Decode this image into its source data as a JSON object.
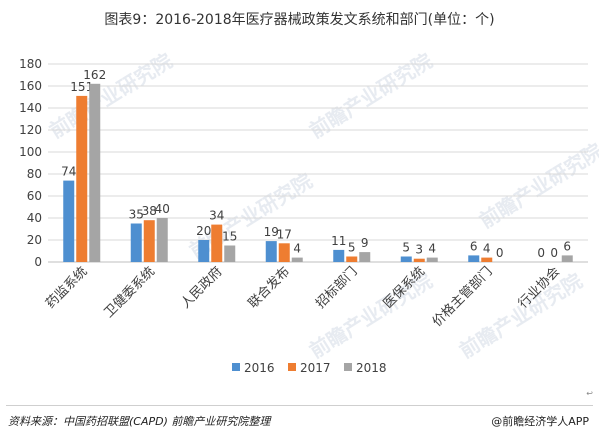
{
  "title": "图表9：2016-2018年医疗器械政策发文系统和部门(单位：个)",
  "source": "资料来源：中国药招联盟(CAPD) 前瞻产业研究院整理",
  "brand": "@前瞻经济学人APP",
  "watermark": "前瞻产业研究院",
  "corner_mark": "↩",
  "colors": {
    "s2016": "#4e8fd0",
    "s2017": "#ee7d31",
    "s2018": "#a5a5a5",
    "grid": "#d9d9d9",
    "text": "#404040"
  },
  "chart_data": {
    "type": "bar",
    "title": "",
    "xlabel": "",
    "ylabel": "",
    "ylim": [
      0,
      180
    ],
    "yticks": [
      0,
      20,
      40,
      60,
      80,
      100,
      120,
      140,
      160,
      180
    ],
    "grid": true,
    "legend_position": "bottom",
    "categories": [
      "药监系统",
      "卫健委系统",
      "人民政府",
      "联合发布",
      "招标部门",
      "医保系统",
      "价格主管部门",
      "行业协会"
    ],
    "series": [
      {
        "name": "2016",
        "values": [
          74,
          35,
          20,
          19,
          11,
          5,
          6,
          0
        ]
      },
      {
        "name": "2017",
        "values": [
          151,
          38,
          34,
          17,
          5,
          3,
          4,
          0
        ]
      },
      {
        "name": "2018",
        "values": [
          162,
          40,
          15,
          4,
          9,
          4,
          0,
          6
        ]
      }
    ]
  }
}
